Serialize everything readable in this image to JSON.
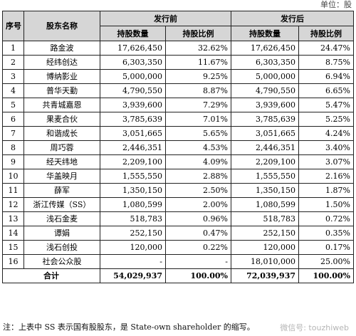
{
  "unit_label": "单位：股",
  "headers": {
    "no": "序号",
    "name": "股东名称",
    "pre_group": "发行前",
    "post_group": "发行后",
    "pre_shares": "持股数量",
    "pre_ratio": "持股比例",
    "post_shares": "持股数量",
    "post_ratio": "持股比例"
  },
  "rows": [
    {
      "no": "1",
      "name": "路金波",
      "pre_shares": "17,626,450",
      "pre_ratio": "32.62%",
      "post_shares": "17,626,450",
      "post_ratio": "24.47%"
    },
    {
      "no": "2",
      "name": "经纬创达",
      "pre_shares": "6,303,350",
      "pre_ratio": "11.67%",
      "post_shares": "6,303,350",
      "post_ratio": "8.75%"
    },
    {
      "no": "3",
      "name": "博纳影业",
      "pre_shares": "5,000,000",
      "pre_ratio": "9.25%",
      "post_shares": "5,000,000",
      "post_ratio": "6.94%"
    },
    {
      "no": "4",
      "name": "普华天勤",
      "pre_shares": "4,790,550",
      "pre_ratio": "8.87%",
      "post_shares": "4,790,550",
      "post_ratio": "6.65%"
    },
    {
      "no": "5",
      "name": "共青城嘉恩",
      "pre_shares": "3,939,600",
      "pre_ratio": "7.29%",
      "post_shares": "3,939,600",
      "post_ratio": "5.47%"
    },
    {
      "no": "6",
      "name": "果麦合伙",
      "pre_shares": "3,785,639",
      "pre_ratio": "7.01%",
      "post_shares": "3,785,639",
      "post_ratio": "5.25%"
    },
    {
      "no": "7",
      "name": "和谐成长",
      "pre_shares": "3,051,665",
      "pre_ratio": "5.65%",
      "post_shares": "3,051,665",
      "post_ratio": "4.24%"
    },
    {
      "no": "8",
      "name": "周巧蓉",
      "pre_shares": "2,446,351",
      "pre_ratio": "4.53%",
      "post_shares": "2,446,351",
      "post_ratio": "3.40%"
    },
    {
      "no": "9",
      "name": "经天纬地",
      "pre_shares": "2,209,100",
      "pre_ratio": "4.09%",
      "post_shares": "2,209,100",
      "post_ratio": "3.07%"
    },
    {
      "no": "10",
      "name": "华盖映月",
      "pre_shares": "1,555,550",
      "pre_ratio": "2.88%",
      "post_shares": "1,555,550",
      "post_ratio": "2.16%"
    },
    {
      "no": "11",
      "name": "薛军",
      "pre_shares": "1,350,150",
      "pre_ratio": "2.50%",
      "post_shares": "1,350,150",
      "post_ratio": "1.87%"
    },
    {
      "no": "12",
      "name": "浙江传媒（SS）",
      "pre_shares": "1,080,599",
      "pre_ratio": "2.00%",
      "post_shares": "1,080,599",
      "post_ratio": "1.50%"
    },
    {
      "no": "13",
      "name": "浅石金麦",
      "pre_shares": "518,783",
      "pre_ratio": "0.96%",
      "post_shares": "518,783",
      "post_ratio": "0.72%"
    },
    {
      "no": "14",
      "name": "谭娟",
      "pre_shares": "252,150",
      "pre_ratio": "0.47%",
      "post_shares": "252,150",
      "post_ratio": "0.35%"
    },
    {
      "no": "15",
      "name": "浅石创投",
      "pre_shares": "120,000",
      "pre_ratio": "0.22%",
      "post_shares": "120,000",
      "post_ratio": "0.17%"
    },
    {
      "no": "16",
      "name": "社会公众股",
      "pre_shares": "-",
      "pre_ratio": "-",
      "post_shares": "18,010,000",
      "post_ratio": "25.00%"
    }
  ],
  "total": {
    "label": "合计",
    "pre_shares": "54,029,937",
    "pre_ratio": "100.00%",
    "post_shares": "72,039,937",
    "post_ratio": "100.00%"
  },
  "note": "注：上表中 SS 表示国有股股东，是 State-own shareholder 的缩写。",
  "watermark": "微信号: touzhiweb"
}
